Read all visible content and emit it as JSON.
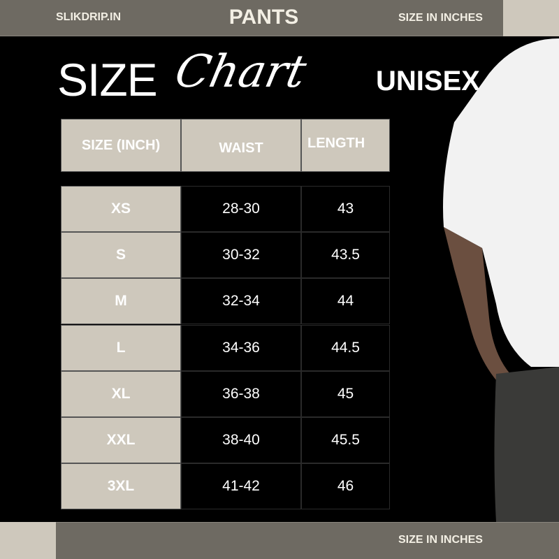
{
  "header": {
    "brand": "SLIKDRIP.IN",
    "category": "PANTS",
    "unit_note": "SIZE IN INCHES"
  },
  "title": {
    "size": "SIZE",
    "chart": "Chart",
    "audience": "UNISEX"
  },
  "table": {
    "columns": [
      "SIZE (INCH)",
      "WAIST",
      "LENGTH"
    ],
    "rows": [
      {
        "size": "XS",
        "waist": "28-30",
        "length": "43"
      },
      {
        "size": "S",
        "waist": "30-32",
        "length": "43.5"
      },
      {
        "size": "M",
        "waist": "32-34",
        "length": "44"
      },
      {
        "size": "L",
        "waist": "34-36",
        "length": "44.5"
      },
      {
        "size": "XL",
        "waist": "36-38",
        "length": "45"
      },
      {
        "size": "XXL",
        "waist": "38-40",
        "length": "45.5"
      },
      {
        "size": "3XL",
        "waist": "41-42",
        "length": "46"
      }
    ]
  },
  "footer": {
    "unit_note": "SIZE IN INCHES"
  },
  "colors": {
    "bar": "#6e6a62",
    "accent": "#cec8bc",
    "background": "#000000"
  }
}
